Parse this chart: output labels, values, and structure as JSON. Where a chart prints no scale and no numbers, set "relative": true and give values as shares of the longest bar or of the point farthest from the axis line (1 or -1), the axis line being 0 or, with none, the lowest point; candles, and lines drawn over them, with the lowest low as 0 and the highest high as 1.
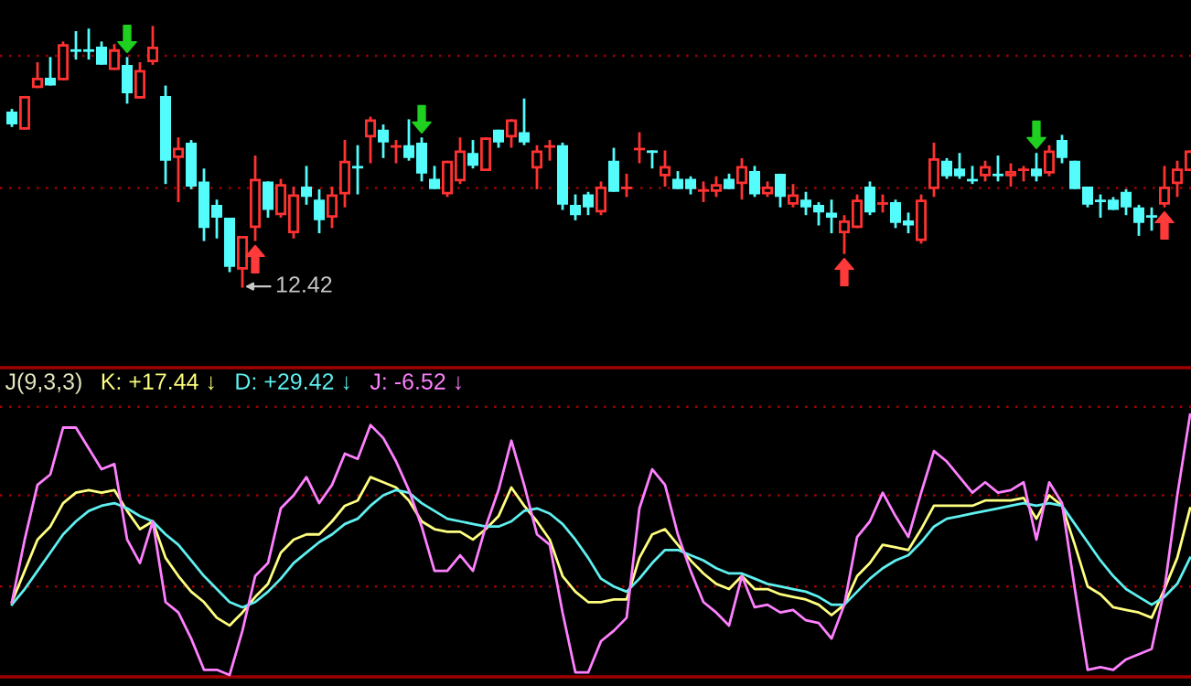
{
  "chart_data": [
    {
      "type": "candlestick",
      "relative": true,
      "categories": [
        null,
        null,
        null,
        null,
        null,
        null,
        null,
        null,
        null,
        null,
        null,
        null,
        null,
        null,
        null,
        null,
        null,
        null,
        null,
        null,
        null,
        null,
        null,
        null,
        null,
        null,
        null,
        null,
        null,
        null,
        null,
        null,
        null,
        null,
        null,
        null,
        null,
        null,
        null,
        null,
        null,
        null,
        null,
        null,
        null,
        null,
        null,
        null,
        null,
        null,
        null,
        null,
        null,
        null,
        null,
        null,
        null,
        null,
        null,
        null,
        null,
        null,
        null,
        null,
        null,
        null,
        null,
        null,
        null,
        null,
        null,
        null,
        null,
        null,
        null,
        null,
        null,
        null,
        null,
        null,
        null,
        null,
        null,
        null,
        null,
        null,
        null,
        null,
        null,
        null,
        null,
        null,
        null
      ],
      "ohlc": [
        [
          0.67,
          0.68,
          0.62,
          0.63
        ],
        [
          0.61,
          0.73,
          0.61,
          0.73
        ],
        [
          0.77,
          0.86,
          0.77,
          0.8
        ],
        [
          0.8,
          0.88,
          0.78,
          0.78
        ],
        [
          0.8,
          0.94,
          0.8,
          0.93
        ],
        [
          0.91,
          0.98,
          0.88,
          0.91
        ],
        [
          0.91,
          0.99,
          0.88,
          0.91
        ],
        [
          0.92,
          0.94,
          0.86,
          0.86
        ],
        [
          0.84,
          0.93,
          0.84,
          0.91
        ],
        [
          0.85,
          0.88,
          0.71,
          0.75
        ],
        [
          0.73,
          0.86,
          0.73,
          0.83
        ],
        [
          0.87,
          1.0,
          0.86,
          0.92
        ],
        [
          0.73,
          0.77,
          0.4,
          0.49
        ],
        [
          0.5,
          0.57,
          0.33,
          0.53
        ],
        [
          0.55,
          0.56,
          0.38,
          0.39
        ],
        [
          0.4,
          0.45,
          0.18,
          0.23
        ],
        [
          0.31,
          0.33,
          0.19,
          0.27
        ],
        [
          0.26,
          0.26,
          0.06,
          0.08
        ],
        [
          0.07,
          0.19,
          0.0,
          0.19
        ],
        [
          0.23,
          0.5,
          0.18,
          0.41
        ],
        [
          0.4,
          0.4,
          0.27,
          0.3
        ],
        [
          0.28,
          0.41,
          0.27,
          0.39
        ],
        [
          0.21,
          0.38,
          0.19,
          0.35
        ],
        [
          0.38,
          0.46,
          0.32,
          0.35
        ],
        [
          0.33,
          0.37,
          0.21,
          0.26
        ],
        [
          0.27,
          0.38,
          0.23,
          0.35
        ],
        [
          0.36,
          0.56,
          0.31,
          0.48
        ],
        [
          0.46,
          0.54,
          0.36,
          0.46
        ],
        [
          0.58,
          0.65,
          0.48,
          0.64
        ],
        [
          0.6,
          0.62,
          0.5,
          0.56
        ],
        [
          0.54,
          0.56,
          0.48,
          0.54
        ],
        [
          0.54,
          0.64,
          0.49,
          0.5
        ],
        [
          0.55,
          0.57,
          0.41,
          0.44
        ],
        [
          0.41,
          0.46,
          0.38,
          0.38
        ],
        [
          0.36,
          0.48,
          0.35,
          0.48
        ],
        [
          0.41,
          0.57,
          0.4,
          0.52
        ],
        [
          0.51,
          0.56,
          0.46,
          0.47
        ],
        [
          0.45,
          0.57,
          0.45,
          0.57
        ],
        [
          0.6,
          0.6,
          0.54,
          0.56
        ],
        [
          0.58,
          0.64,
          0.54,
          0.64
        ],
        [
          0.59,
          0.72,
          0.55,
          0.56
        ],
        [
          0.46,
          0.54,
          0.38,
          0.52
        ],
        [
          0.54,
          0.56,
          0.49,
          0.54
        ],
        [
          0.54,
          0.55,
          0.3,
          0.32
        ],
        [
          0.31,
          0.35,
          0.26,
          0.28
        ],
        [
          0.35,
          0.36,
          0.28,
          0.31
        ],
        [
          0.29,
          0.4,
          0.28,
          0.38
        ],
        [
          0.48,
          0.53,
          0.37,
          0.37
        ],
        [
          0.38,
          0.43,
          0.35,
          0.38
        ],
        [
          0.53,
          0.59,
          0.48,
          0.53
        ],
        [
          0.52,
          0.52,
          0.46,
          0.52
        ],
        [
          0.43,
          0.52,
          0.39,
          0.46
        ],
        [
          0.41,
          0.44,
          0.38,
          0.38
        ],
        [
          0.41,
          0.42,
          0.36,
          0.38
        ],
        [
          0.37,
          0.4,
          0.33,
          0.37
        ],
        [
          0.37,
          0.42,
          0.35,
          0.39
        ],
        [
          0.41,
          0.43,
          0.38,
          0.38
        ],
        [
          0.4,
          0.49,
          0.34,
          0.46
        ],
        [
          0.44,
          0.46,
          0.35,
          0.36
        ],
        [
          0.36,
          0.4,
          0.35,
          0.38
        ],
        [
          0.43,
          0.43,
          0.31,
          0.35
        ],
        [
          0.32,
          0.39,
          0.31,
          0.35
        ],
        [
          0.33,
          0.36,
          0.28,
          0.31
        ],
        [
          0.31,
          0.32,
          0.24,
          0.29
        ],
        [
          0.28,
          0.33,
          0.21,
          0.27
        ],
        [
          0.21,
          0.27,
          0.13,
          0.25
        ],
        [
          0.23,
          0.35,
          0.23,
          0.33
        ],
        [
          0.38,
          0.4,
          0.28,
          0.29
        ],
        [
          0.32,
          0.35,
          0.29,
          0.32
        ],
        [
          0.32,
          0.33,
          0.23,
          0.25
        ],
        [
          0.25,
          0.28,
          0.21,
          0.24
        ],
        [
          0.18,
          0.35,
          0.17,
          0.33
        ],
        [
          0.38,
          0.55,
          0.35,
          0.49
        ],
        [
          0.48,
          0.49,
          0.42,
          0.43
        ],
        [
          0.45,
          0.51,
          0.42,
          0.43
        ],
        [
          0.41,
          0.46,
          0.4,
          0.41
        ],
        [
          0.43,
          0.48,
          0.41,
          0.46
        ],
        [
          0.43,
          0.5,
          0.41,
          0.43
        ],
        [
          0.43,
          0.47,
          0.39,
          0.44
        ],
        [
          0.45,
          0.46,
          0.41,
          0.45
        ],
        [
          0.45,
          0.51,
          0.41,
          0.43
        ],
        [
          0.44,
          0.54,
          0.43,
          0.52
        ],
        [
          0.56,
          0.58,
          0.48,
          0.5
        ],
        [
          0.48,
          0.48,
          0.38,
          0.38
        ],
        [
          0.38,
          0.38,
          0.31,
          0.32
        ],
        [
          0.33,
          0.35,
          0.27,
          0.33
        ],
        [
          0.33,
          0.34,
          0.3,
          0.3
        ],
        [
          0.36,
          0.37,
          0.28,
          0.31
        ],
        [
          0.3,
          0.31,
          0.2,
          0.25
        ],
        [
          0.27,
          0.3,
          0.22,
          0.27
        ],
        [
          0.32,
          0.46,
          0.31,
          0.38
        ],
        [
          0.4,
          0.48,
          0.35,
          0.45
        ],
        [
          0.45,
          0.52,
          0.45,
          0.52
        ]
      ],
      "colors": [
        "#54fcfc",
        "#ff3232",
        "#ff3232",
        "#54fcfc",
        "#ff3232",
        "#54fcfc",
        "#54fcfc",
        "#54fcfc",
        "#ff3232",
        "#54fcfc",
        "#ff3232",
        "#ff3232",
        "#54fcfc",
        "#ff3232",
        "#54fcfc",
        "#54fcfc",
        "#54fcfc",
        "#54fcfc",
        "#ff3232",
        "#ff3232",
        "#54fcfc",
        "#ff3232",
        "#ff3232",
        "#54fcfc",
        "#54fcfc",
        "#ff3232",
        "#ff3232",
        "#54fcfc",
        "#ff3232",
        "#54fcfc",
        "#ff3232",
        "#54fcfc",
        "#54fcfc",
        "#54fcfc",
        "#ff3232",
        "#ff3232",
        "#54fcfc",
        "#ff3232",
        "#54fcfc",
        "#ff3232",
        "#54fcfc",
        "#ff3232",
        "#ff3232",
        "#54fcfc",
        "#54fcfc",
        "#54fcfc",
        "#ff3232",
        "#54fcfc",
        "#ff3232",
        "#ff3232",
        "#54fcfc",
        "#ff3232",
        "#54fcfc",
        "#54fcfc",
        "#ff3232",
        "#ff3232",
        "#54fcfc",
        "#ff3232",
        "#54fcfc",
        "#ff3232",
        "#54fcfc",
        "#ff3232",
        "#54fcfc",
        "#54fcfc",
        "#54fcfc",
        "#ff3232",
        "#ff3232",
        "#54fcfc",
        "#ff3232",
        "#54fcfc",
        "#54fcfc",
        "#ff3232",
        "#ff3232",
        "#54fcfc",
        "#54fcfc",
        "#54fcfc",
        "#ff3232",
        "#54fcfc",
        "#ff3232",
        "#ff3232",
        "#54fcfc",
        "#ff3232",
        "#54fcfc",
        "#54fcfc",
        "#54fcfc",
        "#54fcfc",
        "#54fcfc",
        "#54fcfc",
        "#54fcfc",
        "#54fcfc",
        "#ff3232",
        "#ff3232",
        "#ff3232"
      ],
      "ref_lines": [
        {
          "axis": "y",
          "value": 0.89,
          "color": "#a00000",
          "line_style": "dotted"
        },
        {
          "axis": "y",
          "value": 0.38,
          "color": "#a00000",
          "line_style": "dotted"
        }
      ],
      "annotations": [
        "12.42"
      ]
    },
    {
      "type": "line",
      "relative": true,
      "title": "J(9,3,3)",
      "legend": "top left",
      "categories": [
        null,
        null,
        null,
        null,
        null,
        null,
        null,
        null,
        null,
        null,
        null,
        null,
        null,
        null,
        null,
        null,
        null,
        null,
        null,
        null,
        null,
        null,
        null,
        null,
        null,
        null,
        null,
        null,
        null,
        null,
        null,
        null,
        null,
        null,
        null,
        null,
        null,
        null,
        null,
        null,
        null,
        null,
        null,
        null,
        null,
        null,
        null,
        null,
        null,
        null,
        null,
        null,
        null,
        null,
        null,
        null,
        null,
        null,
        null,
        null,
        null,
        null,
        null,
        null,
        null,
        null,
        null,
        null,
        null,
        null,
        null,
        null,
        null,
        null,
        null,
        null,
        null,
        null,
        null,
        null,
        null,
        null,
        null,
        null,
        null,
        null,
        null,
        null,
        null,
        null,
        null,
        null,
        null
      ],
      "series": [
        {
          "name": "K: +17.44 ↓",
          "color": "#ffff80",
          "values": [
            0.28,
            0.4,
            0.52,
            0.57,
            0.66,
            0.7,
            0.71,
            0.7,
            0.71,
            0.63,
            0.56,
            0.59,
            0.45,
            0.38,
            0.32,
            0.28,
            0.22,
            0.19,
            0.24,
            0.3,
            0.35,
            0.47,
            0.52,
            0.54,
            0.54,
            0.59,
            0.65,
            0.67,
            0.76,
            0.74,
            0.72,
            0.67,
            0.59,
            0.56,
            0.55,
            0.55,
            0.52,
            0.56,
            0.61,
            0.72,
            0.65,
            0.59,
            0.52,
            0.38,
            0.32,
            0.28,
            0.28,
            0.29,
            0.29,
            0.45,
            0.54,
            0.56,
            0.5,
            0.44,
            0.39,
            0.35,
            0.33,
            0.38,
            0.33,
            0.33,
            0.31,
            0.3,
            0.29,
            0.27,
            0.23,
            0.27,
            0.38,
            0.43,
            0.5,
            0.49,
            0.48,
            0.56,
            0.65,
            0.65,
            0.65,
            0.65,
            0.67,
            0.67,
            0.67,
            0.68,
            0.6,
            0.69,
            0.65,
            0.5,
            0.34,
            0.31,
            0.26,
            0.25,
            0.24,
            0.22,
            0.33,
            0.45,
            0.64
          ]
        },
        {
          "name": "D: +29.42 ↓",
          "color": "#5ff0f0",
          "values": [
            0.27,
            0.33,
            0.4,
            0.47,
            0.54,
            0.59,
            0.63,
            0.65,
            0.66,
            0.64,
            0.61,
            0.59,
            0.54,
            0.5,
            0.44,
            0.38,
            0.33,
            0.28,
            0.26,
            0.28,
            0.32,
            0.37,
            0.43,
            0.47,
            0.51,
            0.54,
            0.58,
            0.6,
            0.65,
            0.69,
            0.71,
            0.7,
            0.66,
            0.63,
            0.6,
            0.59,
            0.58,
            0.57,
            0.57,
            0.59,
            0.63,
            0.64,
            0.62,
            0.58,
            0.52,
            0.45,
            0.37,
            0.34,
            0.32,
            0.37,
            0.43,
            0.48,
            0.48,
            0.46,
            0.44,
            0.41,
            0.39,
            0.39,
            0.37,
            0.35,
            0.34,
            0.33,
            0.32,
            0.3,
            0.27,
            0.27,
            0.32,
            0.37,
            0.41,
            0.44,
            0.46,
            0.51,
            0.57,
            0.6,
            0.61,
            0.62,
            0.63,
            0.64,
            0.65,
            0.66,
            0.65,
            0.66,
            0.65,
            0.58,
            0.51,
            0.44,
            0.38,
            0.33,
            0.3,
            0.27,
            0.3,
            0.35,
            0.45
          ]
        },
        {
          "name": "J: -6.52 ↓",
          "color": "#ff80ff",
          "values": [
            0.28,
            0.52,
            0.73,
            0.77,
            0.95,
            0.95,
            0.87,
            0.79,
            0.81,
            0.52,
            0.43,
            0.59,
            0.28,
            0.24,
            0.14,
            0.02,
            0.02,
            0.0,
            0.17,
            0.38,
            0.43,
            0.64,
            0.69,
            0.76,
            0.66,
            0.73,
            0.85,
            0.83,
            0.96,
            0.91,
            0.82,
            0.71,
            0.57,
            0.4,
            0.4,
            0.46,
            0.4,
            0.57,
            0.71,
            0.9,
            0.73,
            0.54,
            0.5,
            0.24,
            0.01,
            0.01,
            0.13,
            0.17,
            0.22,
            0.64,
            0.79,
            0.73,
            0.54,
            0.4,
            0.28,
            0.24,
            0.19,
            0.38,
            0.26,
            0.27,
            0.24,
            0.25,
            0.21,
            0.2,
            0.14,
            0.27,
            0.53,
            0.59,
            0.7,
            0.61,
            0.53,
            0.7,
            0.86,
            0.82,
            0.76,
            0.7,
            0.74,
            0.7,
            0.71,
            0.74,
            0.52,
            0.74,
            0.66,
            0.33,
            0.02,
            0.03,
            0.02,
            0.06,
            0.08,
            0.1,
            0.33,
            0.69,
            1.0
          ]
        }
      ],
      "ref_lines": [
        {
          "axis": "y",
          "value": 1.03,
          "color": "#a00000",
          "line_style": "dotted"
        },
        {
          "axis": "y",
          "value": 0.69,
          "color": "#a00000",
          "line_style": "dotted"
        },
        {
          "axis": "y",
          "value": 0.34,
          "color": "#a00000",
          "line_style": "dotted"
        }
      ]
    }
  ]
}
